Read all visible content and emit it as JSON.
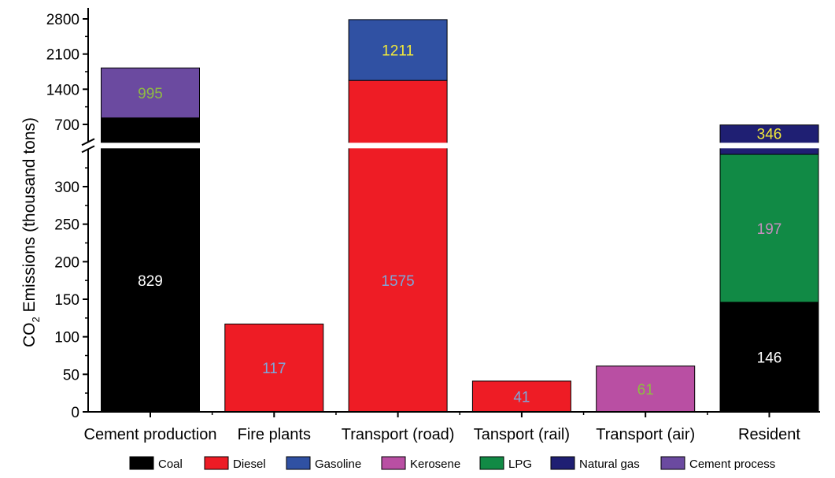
{
  "chart_data": {
    "type": "bar",
    "stacked": true,
    "broken_y_axis": true,
    "categories": [
      "Cement production",
      "Fire plants",
      "Transport (road)",
      "Tansport (rail)",
      "Transport (air)",
      "Resident"
    ],
    "ylabel": {
      "main": "CO",
      "sub": "2",
      "rest": " Emissions (thousand tons)"
    },
    "lower_segment": {
      "ylim": [
        0,
        350
      ],
      "ticks": [
        0,
        50,
        100,
        150,
        200,
        250,
        300
      ]
    },
    "upper_segment": {
      "ylim": [
        350,
        3000
      ],
      "ticks": [
        "700",
        "1400",
        "2100",
        "2800"
      ]
    },
    "series": [
      {
        "name": "Coal",
        "color": "#000000",
        "values": [
          829,
          0,
          0,
          0,
          0,
          146
        ]
      },
      {
        "name": "Diesel",
        "color": "#ee1c25",
        "values": [
          0,
          117,
          1575,
          41,
          0,
          0
        ]
      },
      {
        "name": "Gasoline",
        "color": "#3051a3",
        "values": [
          0,
          0,
          1211,
          0,
          0,
          0
        ]
      },
      {
        "name": "Kerosene",
        "color": "#b94fa3",
        "values": [
          0,
          0,
          0,
          0,
          61,
          0
        ]
      },
      {
        "name": "LPG",
        "color": "#118a45",
        "values": [
          0,
          0,
          0,
          0,
          0,
          197
        ]
      },
      {
        "name": "Natural gas",
        "color": "#1f1f73",
        "values": [
          0,
          0,
          0,
          0,
          0,
          346
        ]
      },
      {
        "name": "Cement process",
        "color": "#6b4aa0",
        "values": [
          995,
          0,
          0,
          0,
          0,
          0
        ]
      }
    ],
    "data_labels": [
      {
        "category": 0,
        "series": "Coal",
        "text": "829",
        "color": "#ffffff"
      },
      {
        "category": 0,
        "series": "Cement process",
        "text": "995",
        "color": "#8fbc43"
      },
      {
        "category": 1,
        "series": "Diesel",
        "text": "117",
        "color": "#7da7d9"
      },
      {
        "category": 2,
        "series": "Diesel",
        "text": "1575",
        "color": "#7da7d9"
      },
      {
        "category": 2,
        "series": "Gasoline",
        "text": "1211",
        "color": "#f2e93a"
      },
      {
        "category": 3,
        "series": "Diesel",
        "text": "41",
        "color": "#7da7d9"
      },
      {
        "category": 4,
        "series": "Kerosene",
        "text": "61",
        "color": "#8fbc43"
      },
      {
        "category": 5,
        "series": "Coal",
        "text": "146",
        "color": "#ffffff"
      },
      {
        "category": 5,
        "series": "LPG",
        "text": "197",
        "color": "#c78fbf"
      },
      {
        "category": 5,
        "series": "Natural gas",
        "text": "346",
        "color": "#f2e93a"
      }
    ],
    "legend": {
      "position": "bottom",
      "items": [
        "Coal",
        "Diesel",
        "Gasoline",
        "Kerosene",
        "LPG",
        "Natural gas",
        "Cement process"
      ]
    },
    "grid": false
  }
}
